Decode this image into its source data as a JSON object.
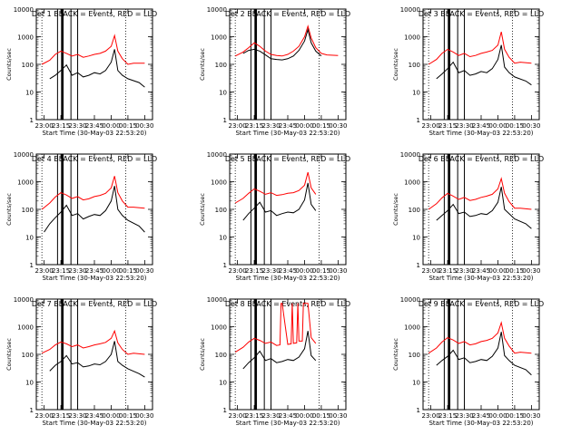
{
  "panel_title_suffix": "BLACK = Events, RED = LLD",
  "xlabel": "Start Time (30-May-03 22:53:20)",
  "ylabel": "Counts/sec",
  "colors": {
    "events": "#000000",
    "lld": "#ff0000",
    "axes": "#000000",
    "background": "#ffffff"
  },
  "chart_data": [
    {
      "type": "line",
      "title": "Det 1",
      "ylog": true,
      "ylim": [
        1,
        10000
      ],
      "xticks": [
        "23:00",
        "23:15",
        "23:30",
        "23:45",
        "00:00",
        "00:15",
        "00:30"
      ],
      "yticks": [
        "1",
        "10",
        "100",
        "1000",
        "10000"
      ],
      "series": [
        {
          "name": "Events",
          "color": "#000000",
          "x": [
            "23:05",
            "23:10",
            "23:15",
            "23:20",
            "23:25",
            "23:30",
            "23:35",
            "23:40",
            "23:45",
            "23:50",
            "23:55",
            "00:00",
            "00:03",
            "00:06",
            "00:10",
            "00:15",
            "00:25",
            "00:30"
          ],
          "y": [
            30,
            40,
            60,
            95,
            40,
            50,
            35,
            40,
            50,
            45,
            60,
            120,
            350,
            60,
            40,
            30,
            22,
            15
          ]
        },
        {
          "name": "LLD",
          "color": "#ff0000",
          "x": [
            "22:58",
            "23:05",
            "23:10",
            "23:15",
            "23:20",
            "23:25",
            "23:30",
            "23:35",
            "23:40",
            "23:45",
            "23:50",
            "23:55",
            "00:00",
            "00:03",
            "00:06",
            "00:10",
            "00:15",
            "00:20",
            "00:30"
          ],
          "y": [
            100,
            140,
            230,
            300,
            250,
            200,
            230,
            180,
            200,
            230,
            250,
            300,
            450,
            1100,
            300,
            160,
            100,
            110,
            110
          ]
        }
      ]
    },
    {
      "type": "line",
      "title": "Det 2",
      "ylog": true,
      "ylim": [
        1,
        10000
      ],
      "xticks": [
        "23:00",
        "23:15",
        "23:30",
        "23:45",
        "00:00",
        "00:15",
        "00:30"
      ],
      "yticks": [
        "1",
        "10",
        "100",
        "1000",
        "10000"
      ],
      "series": [
        {
          "name": "Events",
          "color": "#000000",
          "x": [
            "23:05",
            "23:10",
            "23:15",
            "23:20",
            "23:25",
            "23:30",
            "23:35",
            "23:40",
            "23:45",
            "23:50",
            "23:55",
            "00:00",
            "00:03",
            "00:06",
            "00:10",
            "00:15"
          ],
          "y": [
            250,
            320,
            350,
            300,
            220,
            160,
            150,
            145,
            160,
            200,
            320,
            700,
            1800,
            600,
            300,
            200
          ]
        },
        {
          "name": "LLD",
          "color": "#ff0000",
          "x": [
            "22:58",
            "23:05",
            "23:10",
            "23:15",
            "23:20",
            "23:25",
            "23:30",
            "23:35",
            "23:40",
            "23:45",
            "23:50",
            "23:55",
            "00:00",
            "00:03",
            "00:06",
            "00:10",
            "00:15",
            "00:20",
            "00:30"
          ],
          "y": [
            200,
            280,
            400,
            600,
            450,
            300,
            230,
            210,
            200,
            230,
            300,
            450,
            1000,
            2400,
            900,
            400,
            250,
            220,
            210
          ]
        }
      ]
    },
    {
      "type": "line",
      "title": "Det 3",
      "ylog": true,
      "ylim": [
        1,
        10000
      ],
      "xticks": [
        "23:00",
        "23:15",
        "23:30",
        "23:45",
        "00:00",
        "00:15",
        "00:30"
      ],
      "yticks": [
        "1",
        "10",
        "100",
        "1000",
        "10000"
      ],
      "series": [
        {
          "name": "Events",
          "color": "#000000",
          "x": [
            "23:05",
            "23:10",
            "23:15",
            "23:20",
            "23:25",
            "23:30",
            "23:35",
            "23:40",
            "23:45",
            "23:50",
            "23:55",
            "00:00",
            "00:03",
            "00:06",
            "00:10",
            "00:15",
            "00:25",
            "00:30"
          ],
          "y": [
            30,
            45,
            70,
            120,
            50,
            60,
            40,
            45,
            55,
            50,
            70,
            150,
            500,
            80,
            50,
            35,
            25,
            18
          ]
        },
        {
          "name": "LLD",
          "color": "#ff0000",
          "x": [
            "22:58",
            "23:05",
            "23:10",
            "23:15",
            "23:20",
            "23:25",
            "23:30",
            "23:35",
            "23:40",
            "23:45",
            "23:50",
            "23:55",
            "00:00",
            "00:03",
            "00:06",
            "00:10",
            "00:15",
            "00:20",
            "00:30"
          ],
          "y": [
            100,
            150,
            250,
            350,
            280,
            210,
            250,
            190,
            210,
            250,
            280,
            320,
            500,
            1500,
            350,
            180,
            110,
            120,
            110
          ]
        }
      ]
    },
    {
      "type": "line",
      "title": "Det 4",
      "ylog": true,
      "ylim": [
        1,
        10000
      ],
      "xticks": [
        "23:00",
        "23:15",
        "23:30",
        "23:45",
        "00:00",
        "00:15",
        "00:30"
      ],
      "yticks": [
        "1",
        "10",
        "100",
        "1000",
        "10000"
      ],
      "series": [
        {
          "name": "Events",
          "color": "#000000",
          "x": [
            "23:00",
            "23:05",
            "23:10",
            "23:15",
            "23:20",
            "23:25",
            "23:30",
            "23:35",
            "23:40",
            "23:45",
            "23:50",
            "23:55",
            "00:00",
            "00:03",
            "00:06",
            "00:10",
            "00:15",
            "00:25",
            "00:30"
          ],
          "y": [
            15,
            30,
            50,
            80,
            140,
            60,
            70,
            45,
            55,
            65,
            60,
            90,
            200,
            700,
            100,
            60,
            40,
            25,
            15
          ]
        },
        {
          "name": "LLD",
          "color": "#ff0000",
          "x": [
            "22:58",
            "23:05",
            "23:10",
            "23:15",
            "23:20",
            "23:25",
            "23:30",
            "23:35",
            "23:40",
            "23:45",
            "23:50",
            "23:55",
            "00:00",
            "00:03",
            "00:06",
            "00:10",
            "00:15",
            "00:20",
            "00:30"
          ],
          "y": [
            100,
            170,
            280,
            400,
            330,
            250,
            290,
            220,
            240,
            290,
            320,
            380,
            600,
            1600,
            400,
            200,
            120,
            120,
            110
          ]
        }
      ]
    },
    {
      "type": "line",
      "title": "Det 5",
      "ylog": true,
      "ylim": [
        1,
        10000
      ],
      "xticks": [
        "23:00",
        "23:15",
        "23:30",
        "23:45",
        "00:00",
        "00:15",
        "00:30"
      ],
      "yticks": [
        "1",
        "10",
        "100",
        "1000",
        "10000"
      ],
      "series": [
        {
          "name": "Events",
          "color": "#000000",
          "x": [
            "23:05",
            "23:10",
            "23:15",
            "23:20",
            "23:25",
            "23:30",
            "23:35",
            "23:40",
            "23:45",
            "23:50",
            "23:55",
            "00:00",
            "00:03",
            "00:06",
            "00:10"
          ],
          "y": [
            40,
            70,
            110,
            180,
            80,
            90,
            60,
            70,
            80,
            75,
            100,
            220,
            900,
            150,
            90
          ]
        },
        {
          "name": "LLD",
          "color": "#ff0000",
          "x": [
            "22:58",
            "23:05",
            "23:10",
            "23:15",
            "23:20",
            "23:25",
            "23:30",
            "23:35",
            "23:40",
            "23:45",
            "23:50",
            "23:55",
            "00:00",
            "00:03",
            "00:06",
            "00:10"
          ],
          "y": [
            170,
            250,
            380,
            550,
            450,
            350,
            400,
            320,
            340,
            380,
            400,
            480,
            750,
            2200,
            600,
            350
          ]
        }
      ]
    },
    {
      "type": "line",
      "title": "Det 6",
      "ylog": true,
      "ylim": [
        1,
        10000
      ],
      "xticks": [
        "23:00",
        "23:15",
        "23:30",
        "23:45",
        "00:00",
        "00:15",
        "00:30"
      ],
      "yticks": [
        "1",
        "10",
        "100",
        "1000",
        "10000"
      ],
      "series": [
        {
          "name": "Events",
          "color": "#000000",
          "x": [
            "23:05",
            "23:10",
            "23:15",
            "23:20",
            "23:25",
            "23:30",
            "23:35",
            "23:40",
            "23:45",
            "23:50",
            "23:55",
            "00:00",
            "00:03",
            "00:06",
            "00:10",
            "00:15",
            "00:25",
            "00:30"
          ],
          "y": [
            40,
            60,
            90,
            150,
            70,
            80,
            55,
            60,
            70,
            65,
            90,
            180,
            650,
            100,
            70,
            45,
            30,
            20
          ]
        },
        {
          "name": "LLD",
          "color": "#ff0000",
          "x": [
            "22:58",
            "23:05",
            "23:10",
            "23:15",
            "23:20",
            "23:25",
            "23:30",
            "23:35",
            "23:40",
            "23:45",
            "23:50",
            "23:55",
            "00:00",
            "00:03",
            "00:06",
            "00:10",
            "00:15",
            "00:20",
            "00:30"
          ],
          "y": [
            100,
            160,
            260,
            380,
            300,
            230,
            270,
            210,
            230,
            270,
            300,
            350,
            550,
            1300,
            380,
            190,
            110,
            110,
            100
          ]
        }
      ]
    },
    {
      "type": "line",
      "title": "Det 7",
      "ylog": true,
      "ylim": [
        1,
        10000
      ],
      "xticks": [
        "23:00",
        "23:15",
        "23:30",
        "23:45",
        "00:00",
        "00:15",
        "00:30"
      ],
      "yticks": [
        "1",
        "10",
        "100",
        "1000",
        "10000"
      ],
      "series": [
        {
          "name": "Events",
          "color": "#000000",
          "x": [
            "23:05",
            "23:10",
            "23:15",
            "23:20",
            "23:25",
            "23:30",
            "23:35",
            "23:40",
            "23:45",
            "23:50",
            "23:55",
            "00:00",
            "00:03",
            "00:06",
            "00:10",
            "00:15",
            "00:25",
            "00:30"
          ],
          "y": [
            25,
            40,
            55,
            90,
            45,
            50,
            35,
            38,
            45,
            42,
            55,
            100,
            300,
            55,
            40,
            30,
            20,
            15
          ]
        },
        {
          "name": "LLD",
          "color": "#ff0000",
          "x": [
            "22:58",
            "23:05",
            "23:10",
            "23:15",
            "23:20",
            "23:25",
            "23:30",
            "23:35",
            "23:40",
            "23:45",
            "23:50",
            "23:55",
            "00:00",
            "00:03",
            "00:06",
            "00:10",
            "00:15",
            "00:20",
            "00:30"
          ],
          "y": [
            110,
            150,
            220,
            280,
            240,
            190,
            220,
            170,
            190,
            220,
            240,
            270,
            380,
            700,
            260,
            150,
            100,
            110,
            100
          ]
        }
      ]
    },
    {
      "type": "line",
      "title": "Det 8",
      "ylog": true,
      "ylim": [
        1,
        10000
      ],
      "xticks": [
        "23:00",
        "23:15",
        "23:30",
        "23:45",
        "00:00",
        "00:15",
        "00:30"
      ],
      "yticks": [
        "1",
        "10",
        "100",
        "1000",
        "10000"
      ],
      "series": [
        {
          "name": "Events",
          "color": "#000000",
          "x": [
            "23:05",
            "23:10",
            "23:15",
            "23:20",
            "23:25",
            "23:30",
            "23:35",
            "23:40",
            "23:45",
            "23:50",
            "23:55",
            "00:00",
            "00:03",
            "00:06",
            "00:10"
          ],
          "y": [
            30,
            50,
            75,
            130,
            60,
            70,
            50,
            55,
            65,
            60,
            80,
            160,
            700,
            90,
            60
          ]
        },
        {
          "name": "LLD",
          "color": "#ff0000",
          "x": [
            "22:58",
            "23:05",
            "23:10",
            "23:15",
            "23:20",
            "23:25",
            "23:30",
            "23:35",
            "23:38",
            "23:39",
            "23:40",
            "23:45",
            "23:48",
            "23:49",
            "23:50",
            "23:53",
            "23:54",
            "23:55",
            "23:58",
            "23:59",
            "00:00",
            "00:03",
            "00:06",
            "00:10"
          ],
          "y": [
            120,
            180,
            280,
            380,
            320,
            250,
            280,
            210,
            220,
            7000,
            7000,
            230,
            240,
            7000,
            250,
            260,
            7000,
            300,
            300,
            7000,
            7000,
            7000,
            400,
            250
          ]
        }
      ]
    },
    {
      "type": "line",
      "title": "Det 9",
      "ylog": true,
      "ylim": [
        1,
        10000
      ],
      "xticks": [
        "23:00",
        "23:15",
        "23:30",
        "23:45",
        "00:00",
        "00:15",
        "00:30"
      ],
      "yticks": [
        "1",
        "10",
        "100",
        "1000",
        "10000"
      ],
      "series": [
        {
          "name": "Events",
          "color": "#000000",
          "x": [
            "23:05",
            "23:10",
            "23:15",
            "23:20",
            "23:25",
            "23:30",
            "23:35",
            "23:40",
            "23:45",
            "23:50",
            "23:55",
            "00:00",
            "00:03",
            "00:06",
            "00:10",
            "00:15",
            "00:25",
            "00:30"
          ],
          "y": [
            40,
            60,
            85,
            140,
            65,
            75,
            50,
            55,
            65,
            60,
            85,
            170,
            650,
            90,
            60,
            40,
            28,
            18
          ]
        },
        {
          "name": "LLD",
          "color": "#ff0000",
          "x": [
            "22:58",
            "23:05",
            "23:10",
            "23:15",
            "23:20",
            "23:25",
            "23:30",
            "23:35",
            "23:40",
            "23:45",
            "23:50",
            "23:55",
            "00:00",
            "00:03",
            "00:06",
            "00:10",
            "00:15",
            "00:20",
            "00:30"
          ],
          "y": [
            110,
            170,
            280,
            400,
            330,
            250,
            290,
            220,
            240,
            290,
            320,
            380,
            600,
            1400,
            380,
            200,
            110,
            120,
            110
          ]
        }
      ]
    }
  ]
}
